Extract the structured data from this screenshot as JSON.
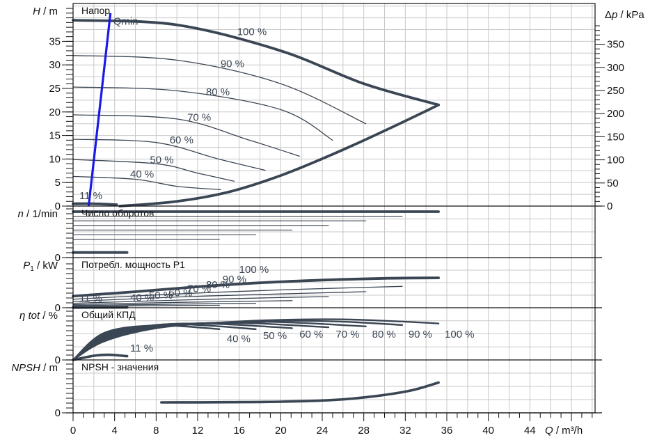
{
  "chart_data": {
    "type": "line",
    "colors": {
      "curve": "#3b4654",
      "qmin_line": "#1a1ae6",
      "grid": "#c8c8c8",
      "axis": "#111111"
    },
    "x_axis": {
      "label_var": "Q",
      "label_unit": " / m³/h",
      "ticks": [
        "0",
        "4",
        "8",
        "12",
        "16",
        "20",
        "24",
        "28",
        "32",
        "36",
        "40",
        "44"
      ],
      "range": [
        0,
        50
      ]
    },
    "panels": [
      {
        "id": "head",
        "title": "Напор",
        "ylabel_var": "H",
        "ylabel_unit": " / m",
        "ylim": [
          0,
          39.5
        ],
        "ticks": [
          "0",
          "5",
          "10",
          "15",
          "20",
          "25",
          "30",
          "35"
        ],
        "right_axis": {
          "label_prefix": "Δ",
          "label_var": "p",
          "label_unit": " / kPa",
          "ticks": [
            "0",
            "50",
            "100",
            "150",
            "200",
            "250",
            "300",
            "350"
          ]
        },
        "series": [
          {
            "name": "100 %",
            "points": [
              [
                0,
                39.5
              ],
              [
                10,
                38.5
              ],
              [
                20,
                33
              ],
              [
                28,
                26
              ],
              [
                35.2,
                21.5
              ]
            ]
          },
          {
            "name": "90 %",
            "points": [
              [
                0,
                32
              ],
              [
                10,
                31
              ],
              [
                20,
                26
              ],
              [
                28.2,
                17.5
              ]
            ]
          },
          {
            "name": "80 %",
            "points": [
              [
                0,
                25.3
              ],
              [
                10,
                24.5
              ],
              [
                20,
                20.5
              ],
              [
                25,
                14
              ]
            ]
          },
          {
            "name": "70 %",
            "points": [
              [
                0,
                19.4
              ],
              [
                10,
                18.5
              ],
              [
                17,
                14
              ],
              [
                21.8,
                10.6
              ]
            ]
          },
          {
            "name": "60 %",
            "points": [
              [
                0,
                14.2
              ],
              [
                8,
                13.5
              ],
              [
                14,
                10
              ],
              [
                18.5,
                7.6
              ]
            ]
          },
          {
            "name": "50 %",
            "points": [
              [
                0,
                9.9
              ],
              [
                8,
                9
              ],
              [
                12,
                7
              ],
              [
                15.5,
                5.3
              ]
            ]
          },
          {
            "name": "40 %",
            "points": [
              [
                0,
                6.3
              ],
              [
                6,
                5.7
              ],
              [
                10,
                4.2
              ],
              [
                14.2,
                3.5
              ]
            ]
          },
          {
            "name": "11 %",
            "points": [
              [
                0,
                0.5
              ],
              [
                2,
                0.5
              ],
              [
                4.2,
                0.3
              ]
            ]
          },
          {
            "name": "",
            "points": [
              [
                4.5,
                0
              ],
              [
                10,
                1
              ],
              [
                15,
                3
              ],
              [
                20,
                6.5
              ],
              [
                25,
                11
              ],
              [
                30,
                16
              ],
              [
                35.2,
                21.5
              ]
            ]
          }
        ],
        "qmin": {
          "label": "Qmin",
          "from": [
            1.5,
            0
          ],
          "to": [
            3.6,
            41
          ]
        },
        "labels": [
          {
            "text": "100 %",
            "x": 15.8,
            "y": 36.3
          },
          {
            "text": "90 %",
            "x": 14.2,
            "y": 29.5
          },
          {
            "text": "80 %",
            "x": 12.8,
            "y": 23.5
          },
          {
            "text": "70 %",
            "x": 11,
            "y": 18.1
          },
          {
            "text": "60 %",
            "x": 9.3,
            "y": 13.3
          },
          {
            "text": "50 %",
            "x": 7.4,
            "y": 9.1
          },
          {
            "text": "40 %",
            "x": 5.5,
            "y": 6.1
          },
          {
            "text": "11 %",
            "x": 0.6,
            "y": 1.5
          }
        ]
      },
      {
        "id": "speed",
        "title": "Число оборотов",
        "ylabel_var": "n",
        "ylabel_unit": " / 1/min",
        "ylim": [
          0,
          100
        ],
        "ticks": [
          "0"
        ],
        "series": [
          {
            "name": "100 %",
            "points": [
              [
                0,
                100
              ],
              [
                35.2,
                100
              ]
            ]
          },
          {
            "name": "90 %",
            "points": [
              [
                0,
                90
              ],
              [
                31.7,
                90
              ]
            ]
          },
          {
            "name": "80 %",
            "points": [
              [
                0,
                80
              ],
              [
                28.2,
                80
              ]
            ]
          },
          {
            "name": "70 %",
            "points": [
              [
                0,
                70
              ],
              [
                24.6,
                70
              ]
            ]
          },
          {
            "name": "60 %",
            "points": [
              [
                0,
                60
              ],
              [
                21.1,
                60
              ]
            ]
          },
          {
            "name": "50 %",
            "points": [
              [
                0,
                50
              ],
              [
                17.6,
                50
              ]
            ]
          },
          {
            "name": "40 %",
            "points": [
              [
                0,
                40
              ],
              [
                14.1,
                40
              ]
            ]
          },
          {
            "name": "11 %",
            "points": [
              [
                0,
                11
              ],
              [
                5.2,
                11
              ]
            ]
          }
        ]
      },
      {
        "id": "power",
        "title": "Потребл. мощность P1",
        "ylabel_var": "P",
        "ylabel_sub": "1",
        "ylabel_unit": " / kW",
        "ylim": [
          0,
          100
        ],
        "ticks": [
          "0"
        ],
        "series": [
          {
            "name": "100 %",
            "points": [
              [
                0,
                26
              ],
              [
                6,
                36
              ],
              [
                12,
                47
              ],
              [
                18,
                56
              ],
              [
                24,
                62
              ],
              [
                30,
                66
              ],
              [
                35.2,
                67
              ]
            ]
          },
          {
            "name": "90 %",
            "points": [
              [
                0,
                19
              ],
              [
                10,
                31
              ],
              [
                20,
                40
              ],
              [
                31.7,
                48
              ]
            ]
          },
          {
            "name": "80 %",
            "points": [
              [
                0,
                14
              ],
              [
                10,
                24
              ],
              [
                20,
                31
              ],
              [
                28.2,
                36
              ]
            ]
          },
          {
            "name": "70 %",
            "points": [
              [
                0,
                10
              ],
              [
                10,
                17
              ],
              [
                20,
                23
              ],
              [
                24.6,
                25
              ]
            ]
          },
          {
            "name": "60 %",
            "points": [
              [
                0,
                7
              ],
              [
                10,
                12
              ],
              [
                21.1,
                16
              ]
            ]
          },
          {
            "name": "50 %",
            "points": [
              [
                0,
                5
              ],
              [
                10,
                8
              ],
              [
                17.6,
                10
              ]
            ]
          },
          {
            "name": "40 %",
            "points": [
              [
                0,
                3
              ],
              [
                10,
                5
              ],
              [
                14.1,
                5.5
              ]
            ]
          },
          {
            "name": "11 %",
            "points": [
              [
                0,
                0.5
              ],
              [
                5.2,
                0.8
              ]
            ]
          }
        ],
        "labels": [
          {
            "text": "100 %",
            "x": 16,
            "y": 78
          },
          {
            "text": "90 %",
            "x": 14.4,
            "y": 56
          },
          {
            "text": "80 %",
            "x": 12.8,
            "y": 44
          },
          {
            "text": "70 %",
            "x": 11,
            "y": 35
          },
          {
            "text": "60 %",
            "x": 9.2,
            "y": 26
          },
          {
            "text": "50 %",
            "x": 7.3,
            "y": 20
          },
          {
            "text": "40 %",
            "x": 5.5,
            "y": 15
          },
          {
            "text": "11 %",
            "x": 0.6,
            "y": 13
          }
        ]
      },
      {
        "id": "efficiency",
        "title": "Общий КПД",
        "ylabel_var": "η tot",
        "ylabel_unit": " / %",
        "ylim": [
          0,
          100
        ],
        "ticks": [
          "0"
        ],
        "series": [
          {
            "name": "100 %",
            "points": [
              [
                0,
                0
              ],
              [
                3,
                40
              ],
              [
                8,
                68
              ],
              [
                14,
                80
              ],
              [
                20,
                86
              ],
              [
                26,
                87
              ],
              [
                32,
                82
              ],
              [
                35.2,
                78
              ]
            ]
          },
          {
            "name": "90 %",
            "points": [
              [
                0,
                0
              ],
              [
                3,
                43
              ],
              [
                8,
                70
              ],
              [
                14,
                80
              ],
              [
                20,
                84
              ],
              [
                26,
                82
              ],
              [
                31.7,
                75
              ]
            ]
          },
          {
            "name": "80 %",
            "points": [
              [
                0,
                0
              ],
              [
                3,
                46
              ],
              [
                8,
                72
              ],
              [
                14,
                80
              ],
              [
                20,
                81
              ],
              [
                28.2,
                72
              ]
            ]
          },
          {
            "name": "70 %",
            "points": [
              [
                0,
                0
              ],
              [
                3,
                49
              ],
              [
                8,
                74
              ],
              [
                14,
                79
              ],
              [
                18,
                78
              ],
              [
                24.6,
                70
              ]
            ]
          },
          {
            "name": "60 %",
            "points": [
              [
                0,
                0
              ],
              [
                3,
                52
              ],
              [
                8,
                75
              ],
              [
                14,
                77
              ],
              [
                21.1,
                68
              ]
            ]
          },
          {
            "name": "50 %",
            "points": [
              [
                0,
                0
              ],
              [
                3,
                55
              ],
              [
                8,
                75
              ],
              [
                12,
                75
              ],
              [
                17.6,
                66
              ]
            ]
          },
          {
            "name": "40 %",
            "points": [
              [
                0,
                0
              ],
              [
                3,
                58
              ],
              [
                8,
                74
              ],
              [
                14.1,
                66
              ]
            ]
          },
          {
            "name": "11 %",
            "points": [
              [
                0,
                0
              ],
              [
                2,
                9
              ],
              [
                3.5,
                11
              ],
              [
                5.2,
                8
              ]
            ]
          }
        ],
        "labels": [
          {
            "text": "40 %",
            "x": 14.8,
            "y": 38
          },
          {
            "text": "50 %",
            "x": 18.3,
            "y": 45
          },
          {
            "text": "60 %",
            "x": 21.8,
            "y": 48
          },
          {
            "text": "70 %",
            "x": 25.3,
            "y": 48
          },
          {
            "text": "80 %",
            "x": 28.8,
            "y": 48
          },
          {
            "text": "90 %",
            "x": 32.3,
            "y": 48
          },
          {
            "text": "100 %",
            "x": 35.8,
            "y": 48
          },
          {
            "text": "11 %",
            "x": 5.5,
            "y": 18
          }
        ]
      },
      {
        "id": "npsh",
        "title": "NPSH - значения",
        "ylabel_var": "NPSH",
        "ylabel_unit": " / m",
        "ylim": [
          0,
          100
        ],
        "ticks": [
          "0"
        ],
        "series": [
          {
            "name": "100 %",
            "points": [
              [
                8.5,
                22
              ],
              [
                15,
                22.5
              ],
              [
                20,
                23.5
              ],
              [
                25,
                27
              ],
              [
                29,
                35
              ],
              [
                32.5,
                47
              ],
              [
                35.2,
                64
              ]
            ]
          }
        ]
      }
    ]
  }
}
